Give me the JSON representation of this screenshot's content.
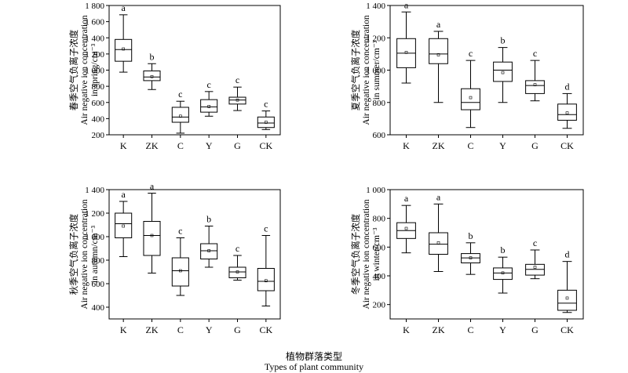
{
  "chart_data": [
    {
      "type": "box",
      "categories": [
        "K",
        "ZK",
        "C",
        "Y",
        "G",
        "CK"
      ],
      "ylabel_cn": "春季空气负离子浓度",
      "ylabel_en_1": "Air negative ion concentration",
      "ylabel_en_2": "in spring/cm⁻³",
      "ylim": [
        200,
        1800
      ],
      "yticks": [
        200,
        400,
        600,
        800,
        1000,
        1200,
        1400,
        1600,
        1800
      ],
      "yticklabels": [
        "200",
        "400",
        "600",
        "800",
        "1 000",
        "1 200",
        "1 400",
        "1 600",
        "1 800"
      ],
      "boxes": [
        {
          "min": 975,
          "q1": 1110,
          "median": 1255,
          "q3": 1380,
          "max": 1685,
          "mean": 1262,
          "letter": "a"
        },
        {
          "min": 760,
          "q1": 870,
          "median": 915,
          "q3": 990,
          "max": 1080,
          "mean": 920,
          "letter": "b"
        },
        {
          "min": 220,
          "q1": 355,
          "median": 420,
          "q3": 540,
          "max": 615,
          "mean": 430,
          "letter": "c"
        },
        {
          "min": 430,
          "q1": 480,
          "median": 545,
          "q3": 635,
          "max": 735,
          "mean": 550,
          "letter": "c"
        },
        {
          "min": 500,
          "q1": 580,
          "median": 630,
          "q3": 665,
          "max": 790,
          "mean": 630,
          "letter": "c"
        },
        {
          "min": 265,
          "q1": 290,
          "median": 345,
          "q3": 420,
          "max": 495,
          "mean": 355,
          "letter": "c"
        }
      ]
    },
    {
      "type": "box",
      "categories": [
        "K",
        "ZK",
        "C",
        "Y",
        "G",
        "CK"
      ],
      "ylabel_cn": "夏季空气负离子浓度",
      "ylabel_en_1": "Air negative ion concentration",
      "ylabel_en_2": "in summer/cm⁻³",
      "ylim": [
        600,
        1400
      ],
      "yticks": [
        600,
        800,
        1000,
        1200,
        1400
      ],
      "yticklabels": [
        "600",
        "800",
        "1 000",
        "1 200",
        "1 400"
      ],
      "boxes": [
        {
          "min": 920,
          "q1": 1015,
          "median": 1105,
          "q3": 1195,
          "max": 1360,
          "mean": 1110,
          "letter": "a"
        },
        {
          "min": 800,
          "q1": 1040,
          "median": 1100,
          "q3": 1195,
          "max": 1240,
          "mean": 1095,
          "letter": "a"
        },
        {
          "min": 645,
          "q1": 755,
          "median": 800,
          "q3": 885,
          "max": 1060,
          "mean": 830,
          "letter": "c"
        },
        {
          "min": 800,
          "q1": 930,
          "median": 1000,
          "q3": 1050,
          "max": 1140,
          "mean": 985,
          "letter": "b"
        },
        {
          "min": 810,
          "q1": 855,
          "median": 905,
          "q3": 935,
          "max": 1060,
          "mean": 910,
          "letter": "c"
        },
        {
          "min": 640,
          "q1": 690,
          "median": 725,
          "q3": 790,
          "max": 855,
          "mean": 735,
          "letter": "d"
        }
      ]
    },
    {
      "type": "box",
      "categories": [
        "K",
        "ZK",
        "C",
        "Y",
        "G",
        "CK"
      ],
      "ylabel_cn": "秋季空气负离子浓度",
      "ylabel_en_1": "Air negative ion concentration",
      "ylabel_en_2": "in autumn/cm⁻³",
      "ylim": [
        300,
        1400
      ],
      "yticks": [
        400,
        600,
        800,
        1000,
        1200,
        1400
      ],
      "yticklabels": [
        "400",
        "600",
        "800",
        "1 000",
        "1 200",
        "1 400"
      ],
      "boxes": [
        {
          "min": 830,
          "q1": 990,
          "median": 1110,
          "q3": 1200,
          "max": 1300,
          "mean": 1090,
          "letter": "a"
        },
        {
          "min": 690,
          "q1": 840,
          "median": 1010,
          "q3": 1130,
          "max": 1370,
          "mean": 1010,
          "letter": "a"
        },
        {
          "min": 500,
          "q1": 580,
          "median": 710,
          "q3": 820,
          "max": 990,
          "mean": 710,
          "letter": "c"
        },
        {
          "min": 740,
          "q1": 810,
          "median": 880,
          "q3": 940,
          "max": 1090,
          "mean": 880,
          "letter": "b"
        },
        {
          "min": 630,
          "q1": 650,
          "median": 700,
          "q3": 740,
          "max": 840,
          "mean": 700,
          "letter": "c"
        },
        {
          "min": 410,
          "q1": 540,
          "median": 620,
          "q3": 730,
          "max": 1010,
          "mean": 625,
          "letter": "c"
        }
      ]
    },
    {
      "type": "box",
      "categories": [
        "K",
        "ZK",
        "C",
        "Y",
        "G",
        "CK"
      ],
      "ylabel_cn": "冬季空气负离子浓度",
      "ylabel_en_1": "Air negative ion concentration",
      "ylabel_en_2": "in winter/cm⁻³",
      "ylim": [
        100,
        1000
      ],
      "yticks": [
        200,
        400,
        600,
        800,
        1000
      ],
      "yticklabels": [
        "200",
        "400",
        "600",
        "800",
        "1 000"
      ],
      "boxes": [
        {
          "min": 560,
          "q1": 660,
          "median": 715,
          "q3": 770,
          "max": 890,
          "mean": 730,
          "letter": "a"
        },
        {
          "min": 430,
          "q1": 550,
          "median": 620,
          "q3": 700,
          "max": 900,
          "mean": 630,
          "letter": "a"
        },
        {
          "min": 410,
          "q1": 490,
          "median": 525,
          "q3": 555,
          "max": 630,
          "mean": 525,
          "letter": "b"
        },
        {
          "min": 280,
          "q1": 375,
          "median": 420,
          "q3": 455,
          "max": 530,
          "mean": 420,
          "letter": "b"
        },
        {
          "min": 380,
          "q1": 405,
          "median": 445,
          "q3": 480,
          "max": 580,
          "mean": 460,
          "letter": "c"
        },
        {
          "min": 145,
          "q1": 160,
          "median": 210,
          "q3": 300,
          "max": 500,
          "mean": 245,
          "letter": "d"
        }
      ]
    }
  ],
  "footer": {
    "xlabel_cn": "植物群落类型",
    "xlabel_en": "Types of plant community"
  }
}
